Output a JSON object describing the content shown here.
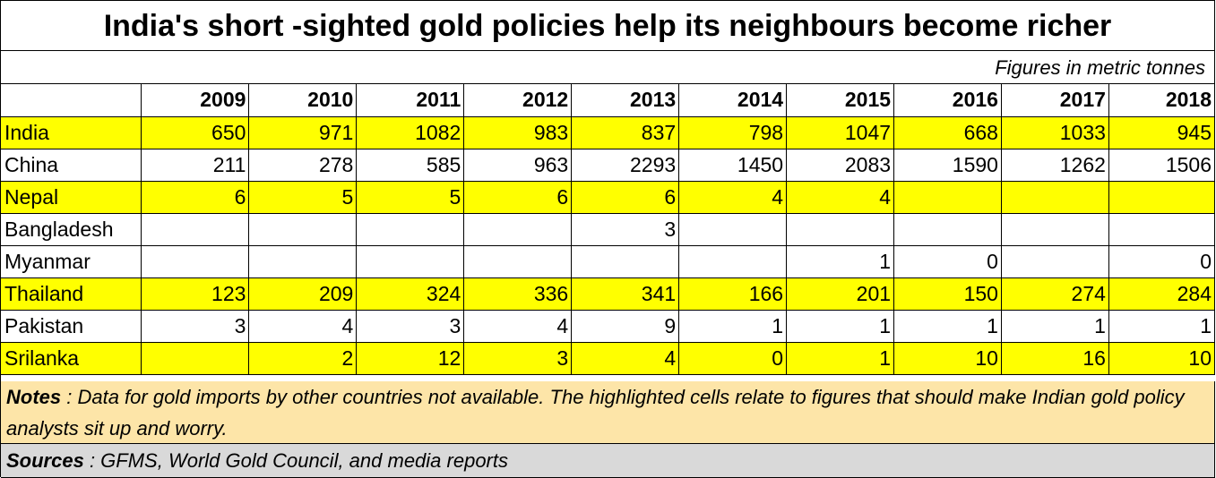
{
  "title": "India's short -sighted gold policies help its neighbours become richer",
  "units_note": "Figures in metric tonnes",
  "chart_data": {
    "type": "table",
    "columns": [
      "2009",
      "2010",
      "2011",
      "2012",
      "2013",
      "2014",
      "2015",
      "2016",
      "2017",
      "2018"
    ],
    "rows": [
      {
        "country": "India",
        "highlight": true,
        "values": [
          "650",
          "971",
          "1082",
          "983",
          "837",
          "798",
          "1047",
          "668",
          "1033",
          "945"
        ]
      },
      {
        "country": "China",
        "highlight": false,
        "values": [
          "211",
          "278",
          "585",
          "963",
          "2293",
          "1450",
          "2083",
          "1590",
          "1262",
          "1506"
        ]
      },
      {
        "country": "Nepal",
        "highlight": true,
        "values": [
          "6",
          "5",
          "5",
          "6",
          "6",
          "4",
          "4",
          "",
          "",
          ""
        ]
      },
      {
        "country": "Bangladesh",
        "highlight": false,
        "values": [
          "",
          "",
          "",
          "",
          "3",
          "",
          "",
          "",
          "",
          ""
        ]
      },
      {
        "country": "Myanmar",
        "highlight": false,
        "values": [
          "",
          "",
          "",
          "",
          "",
          "",
          "1",
          "0",
          "",
          "0"
        ]
      },
      {
        "country": "Thailand",
        "highlight": true,
        "values": [
          "123",
          "209",
          "324",
          "336",
          "341",
          "166",
          "201",
          "150",
          "274",
          "284"
        ]
      },
      {
        "country": "Pakistan",
        "highlight": false,
        "values": [
          "3",
          "4",
          "3",
          "4",
          "9",
          "1",
          "1",
          "1",
          "1",
          "1"
        ]
      },
      {
        "country": "Srilanka",
        "highlight": true,
        "values": [
          "",
          "2",
          "12",
          "3",
          "4",
          "0",
          "1",
          "10",
          "16",
          "10"
        ]
      }
    ]
  },
  "notes": {
    "label": "Notes",
    "text": " : Data for gold imports by other countries not available. The highlighted cells relate to figures that should make Indian gold policy analysts sit up and worry."
  },
  "sources": {
    "label": "Sources",
    "text": " : GFMS, World Gold Council, and media reports"
  },
  "colors": {
    "highlight": "#ffff00",
    "notes_bg": "#fde5a8",
    "sources_bg": "#d9d9d9"
  }
}
